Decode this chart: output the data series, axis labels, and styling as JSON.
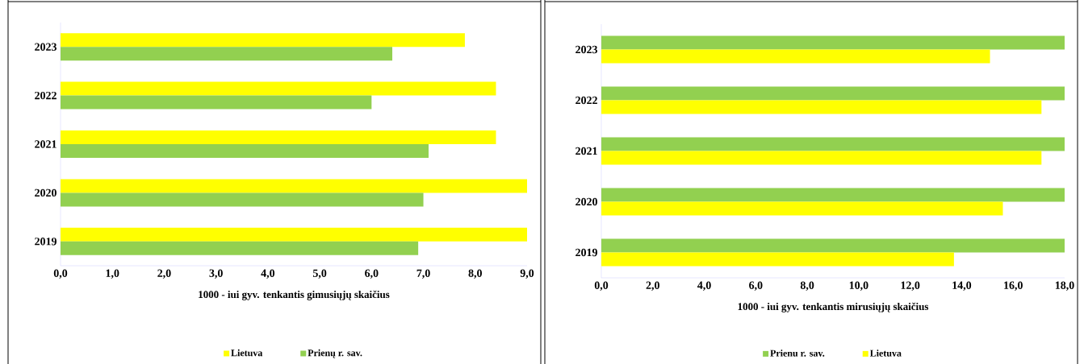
{
  "chart_data": [
    {
      "type": "bar",
      "orientation": "horizontal",
      "xlabel": "1000 - iui gyv. tenkantis gimusiųjų  skaičius",
      "categories": [
        "2023",
        "2022",
        "2021",
        "2020",
        "2019"
      ],
      "series": [
        {
          "name": "Lietuva",
          "color": "#ffff00",
          "values": [
            7.8,
            8.4,
            8.4,
            9.0,
            9.0
          ]
        },
        {
          "name": "Prienų r. sav.",
          "color": "#92d050",
          "values": [
            6.4,
            6.0,
            7.1,
            7.0,
            6.9
          ]
        }
      ],
      "xlim": [
        0,
        9
      ],
      "xticks": [
        {
          "value": 0,
          "label": "0,0"
        },
        {
          "value": 1,
          "label": "1,0"
        },
        {
          "value": 2,
          "label": "2,0"
        },
        {
          "value": 3,
          "label": "3,0"
        },
        {
          "value": 4,
          "label": "4,0"
        },
        {
          "value": 5,
          "label": "5,0"
        },
        {
          "value": 6,
          "label": "6,0"
        },
        {
          "value": 7,
          "label": "7,0"
        },
        {
          "value": 8,
          "label": "8,0"
        },
        {
          "value": 9,
          "label": "9,0"
        }
      ],
      "legend": "bottom"
    },
    {
      "type": "bar",
      "orientation": "horizontal",
      "xlabel": "1000 - iui gyv. tenkantis mirusiųjų  skaičius",
      "categories": [
        "2023",
        "2022",
        "2021",
        "2020",
        "2019"
      ],
      "series": [
        {
          "name": "Prienu r. sav.",
          "color": "#92d050",
          "values": [
            18.0,
            18.0,
            18.0,
            18.0,
            18.0
          ]
        },
        {
          "name": "Lietuva",
          "color": "#ffff00",
          "values": [
            15.1,
            17.1,
            17.1,
            15.6,
            13.7
          ]
        }
      ],
      "xlim": [
        0,
        18
      ],
      "xticks": [
        {
          "value": 0,
          "label": "0,0"
        },
        {
          "value": 2,
          "label": "2,0"
        },
        {
          "value": 4,
          "label": "4,0"
        },
        {
          "value": 6,
          "label": "6,0"
        },
        {
          "value": 8,
          "label": "8,0"
        },
        {
          "value": 10,
          "label": "10,0"
        },
        {
          "value": 12,
          "label": "12,0"
        },
        {
          "value": 14,
          "label": "14,0"
        },
        {
          "value": 16,
          "label": "16,0"
        },
        {
          "value": 18,
          "label": "18,0"
        }
      ],
      "legend": "bottom"
    }
  ]
}
